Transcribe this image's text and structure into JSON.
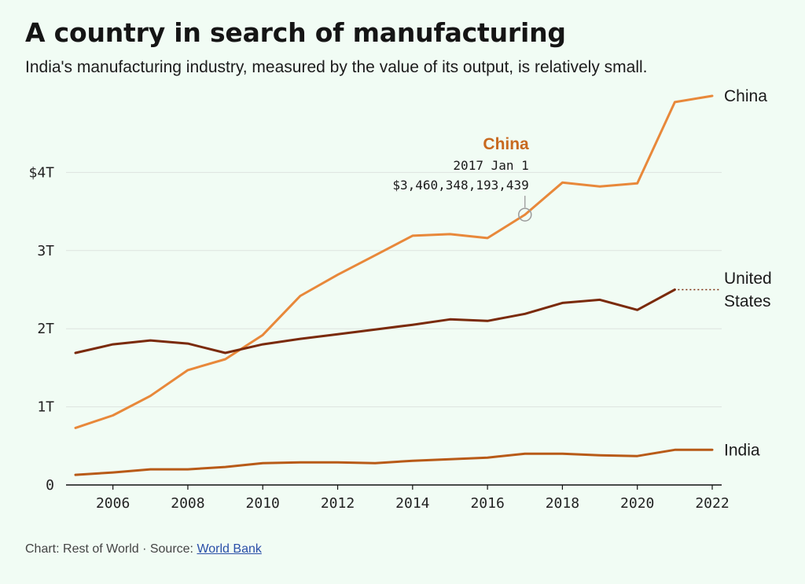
{
  "header": {
    "title": "A country in search of manufacturing",
    "subtitle": "India's manufacturing industry, measured by the value of its output, is relatively small."
  },
  "chart_data": {
    "type": "line",
    "x": [
      2005,
      2006,
      2007,
      2008,
      2009,
      2010,
      2011,
      2012,
      2013,
      2014,
      2015,
      2016,
      2017,
      2018,
      2019,
      2020,
      2021,
      2022
    ],
    "xlim": [
      2005,
      2022
    ],
    "ylim": [
      0,
      5
    ],
    "grid": true,
    "x_ticks": [
      {
        "value": 2006,
        "label": "2006"
      },
      {
        "value": 2008,
        "label": "2008"
      },
      {
        "value": 2010,
        "label": "2010"
      },
      {
        "value": 2012,
        "label": "2012"
      },
      {
        "value": 2014,
        "label": "2014"
      },
      {
        "value": 2016,
        "label": "2016"
      },
      {
        "value": 2018,
        "label": "2018"
      },
      {
        "value": 2020,
        "label": "2020"
      },
      {
        "value": 2022,
        "label": "2022"
      }
    ],
    "y_ticks": [
      {
        "value": 0,
        "label": "0"
      },
      {
        "value": 1,
        "label": "1T"
      },
      {
        "value": 2,
        "label": "2T"
      },
      {
        "value": 3,
        "label": "3T"
      },
      {
        "value": 4,
        "label": "$4T"
      }
    ],
    "series": [
      {
        "name": "China",
        "color": "#e8883a",
        "values": [
          0.73,
          0.89,
          1.14,
          1.47,
          1.61,
          1.92,
          2.42,
          2.69,
          2.94,
          3.19,
          3.21,
          3.16,
          3.46,
          3.87,
          3.82,
          3.86,
          4.9,
          4.98
        ],
        "label_lines": [
          "China"
        ]
      },
      {
        "name": "United States",
        "color": "#7a2a0a",
        "values": [
          1.69,
          1.8,
          1.85,
          1.81,
          1.69,
          1.8,
          1.87,
          1.93,
          1.99,
          2.05,
          2.12,
          2.1,
          2.19,
          2.33,
          2.37,
          2.24,
          2.5,
          null
        ],
        "label_lines": [
          "United",
          "States"
        ]
      },
      {
        "name": "India",
        "color": "#b85a17",
        "values": [
          0.13,
          0.16,
          0.2,
          0.2,
          0.23,
          0.28,
          0.29,
          0.29,
          0.28,
          0.31,
          0.33,
          0.35,
          0.4,
          0.4,
          0.38,
          0.37,
          0.45,
          0.45
        ],
        "label_lines": [
          "India"
        ]
      }
    ],
    "tooltip": {
      "series": "China",
      "x": 2017,
      "y": 3.46,
      "name": "China",
      "date": "2017 Jan 1",
      "value": "$3,460,348,193,439",
      "color": "#c8691f"
    }
  },
  "footer": {
    "credit": "Chart: Rest of World · Source: ",
    "source_link": "World Bank"
  }
}
